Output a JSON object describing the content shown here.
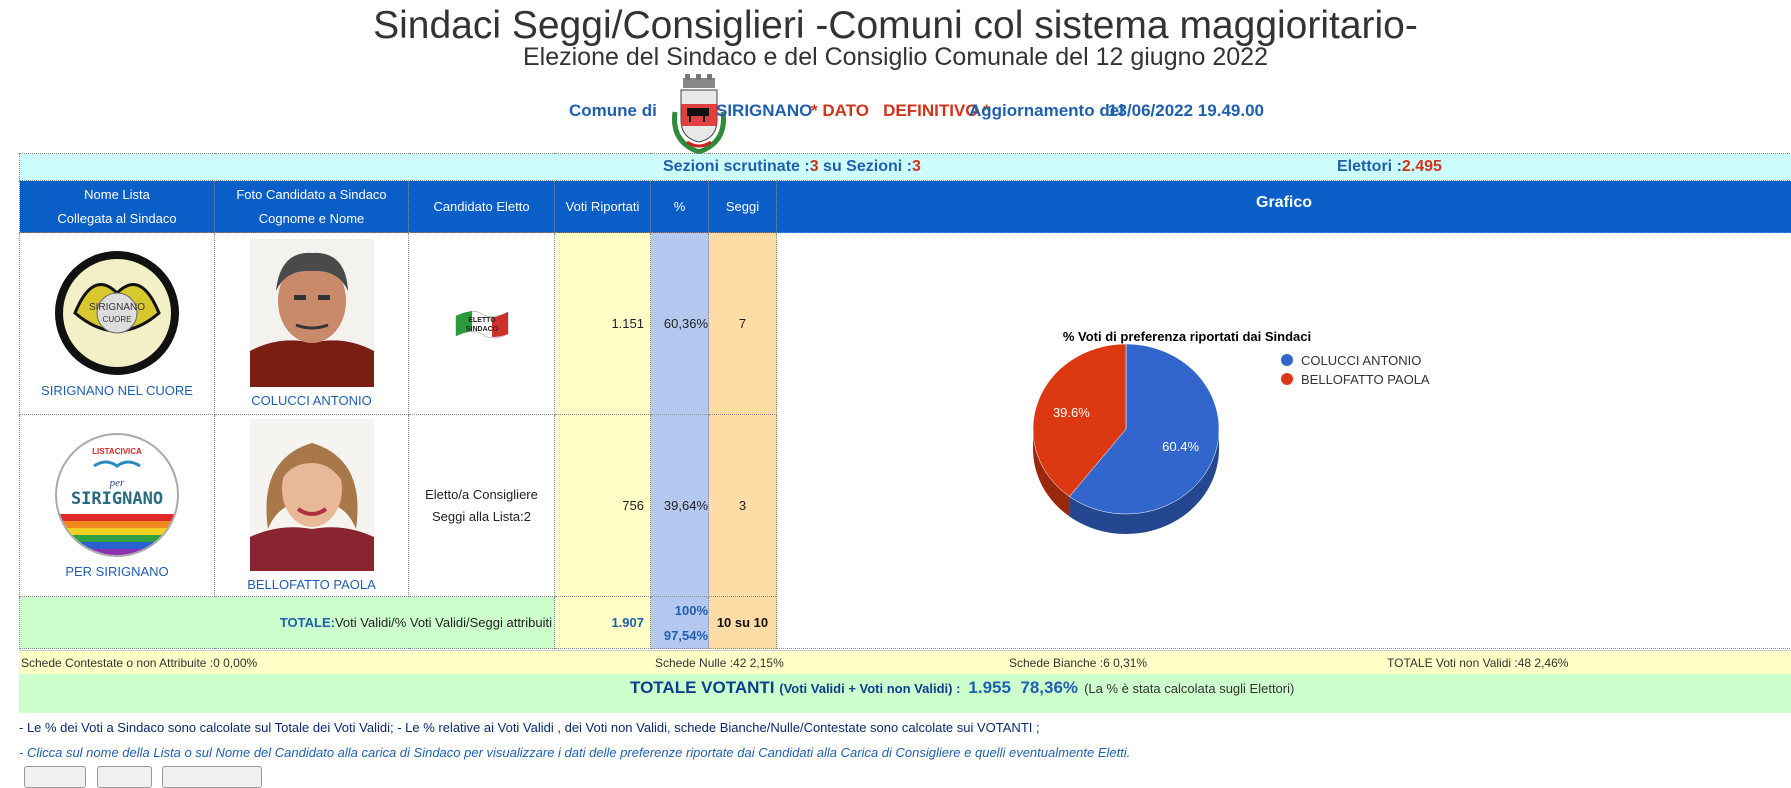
{
  "title": "Sindaci Seggi/Consiglieri -Comuni col sistema maggioritario-",
  "subtitle": "Elezione del Sindaco e del Consiglio Comunale del 12 giugno 2022",
  "comune": {
    "label": "Comune di",
    "name": "SIRIGNANO",
    "dato": "* DATO   DEFINITIVO *",
    "aggiornamento_label": "Aggiornamento del",
    "aggiornamento": "13/06/2022 19.49.00"
  },
  "sezioni": {
    "label": "Sezioni scrutinate :",
    "scrutinate": "3",
    "su_label": " su Sezioni :",
    "totale": "3",
    "elettori_label": "Elettori :",
    "elettori": "2.495"
  },
  "headers": {
    "nome_lista_1": "Nome Lista",
    "nome_lista_2": "Collegata al Sindaco",
    "foto_1": "Foto Candidato a Sindaco",
    "foto_2": "Cognome e Nome",
    "eletto": "Candidato Eletto",
    "voti": "Voti Riportati",
    "perc": "%",
    "seggi": "Seggi",
    "grafico": "Grafico"
  },
  "rows": [
    {
      "lista": "SIRIGNANO NEL CUORE",
      "logo_text": "SIRIGNANO",
      "logo_text_2": "CUORE",
      "candidato": "COLUCCI ANTONIO",
      "eletto_badge": "ELETTO SINDACO",
      "voti": "1.151",
      "perc": "60,36%",
      "seggi": "7"
    },
    {
      "lista": "PER SIRIGNANO",
      "logo_text": "SIRIGNANO",
      "logo_text_2": "LISTACIVICA",
      "logo_text_3": "per",
      "candidato": "BELLOFATTO PAOLA",
      "eletto_1": "Eletto/a Consigliere",
      "eletto_2": "Seggi alla Lista:2",
      "voti": "756",
      "perc": "39,64%",
      "seggi": "3"
    }
  ],
  "totale": {
    "label": "TOTALE:",
    "label_rest": "Voti Validi/% Voti Validi/Seggi attribuiti",
    "voti": "1.907",
    "perc_1": "100%",
    "perc_2": "97,54%",
    "seggi": "10 su 10"
  },
  "stats": {
    "contestate": "Schede Contestate o non Attribuite :0   0,00%",
    "nulle": "Schede Nulle :42   2,15%",
    "bianche": "Schede Bianche :6   0,31%",
    "non_validi": "TOTALE Voti non Validi :48   2,46%"
  },
  "votanti": {
    "label": "TOTALE VOTANTI",
    "sub": "(Voti Validi + Voti non Validi) :",
    "value": "1.955  78,36%",
    "note": "(La % è stata calcolata sugli Elettori)"
  },
  "notes": {
    "note1": "- Le % dei Voti a Sindaco sono calcolate sul Totale dei Voti Validi; - Le % relative ai Voti Validi , dei Voti non Validi, schede Bianche/Nulle/Contestate sono calcolate sui VOTANTI ;",
    "note2": "- Clicca sul nome della Lista o sul Nome del Candidato alla carica di Sindaco  per visualizzare i dati delle preferenze riportate dai Candidati alla Carica di Consigliere e quelli eventualmente Eletti."
  },
  "colors": {
    "header_blue": "#0a5ec8",
    "series_blue": "#3366cc",
    "series_red": "#dc3912"
  },
  "chart_data": {
    "type": "pie",
    "title": "% Voti di preferenza riportati dai Sindaci",
    "categories": [
      "COLUCCI ANTONIO",
      "BELLOFATTO PAOLA"
    ],
    "values": [
      60.4,
      39.6
    ],
    "labels": [
      "60.4%",
      "39.6%"
    ],
    "colors": [
      "#3366cc",
      "#dc3912"
    ],
    "legend_position": "right"
  }
}
